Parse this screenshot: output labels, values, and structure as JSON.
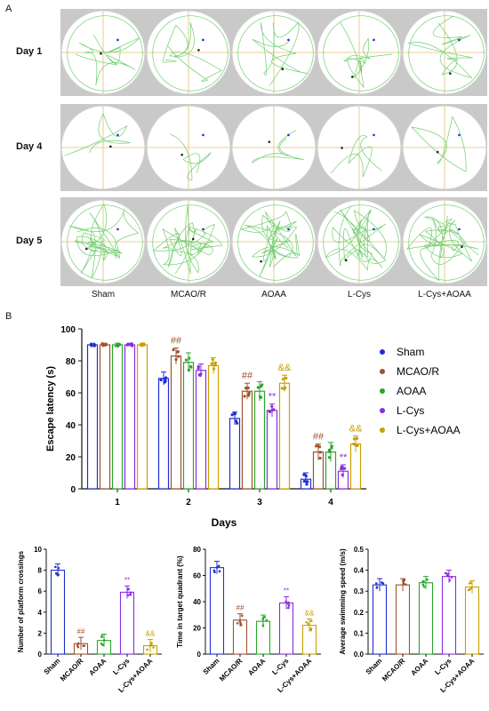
{
  "panel_a": {
    "label": "A",
    "days": [
      "Day 1",
      "Day 4",
      "Day 5"
    ],
    "groups": [
      "Sham",
      "MCAO/R",
      "AOAA",
      "L-Cys",
      "L-Cys+AOAA"
    ]
  },
  "panel_b": {
    "label": "B"
  },
  "colors": {
    "Sham": "#1f2fd0",
    "MCAO/R": "#a0522d",
    "AOAA": "#2aa52a",
    "L-Cys": "#8a2be2",
    "L-Cys+AOAA": "#c8a000"
  },
  "chart_data": [
    {
      "type": "bar",
      "ylabel": "Escape latency (s)",
      "xlabel": "Days",
      "categories": [
        "1",
        "2",
        "3",
        "4"
      ],
      "ylim": [
        0,
        100
      ],
      "yticks": [
        0,
        20,
        40,
        60,
        80,
        100
      ],
      "series": [
        {
          "name": "Sham",
          "values": [
            90,
            69,
            44,
            6
          ]
        },
        {
          "name": "MCAO/R",
          "values": [
            90,
            83,
            61,
            23
          ]
        },
        {
          "name": "AOAA",
          "values": [
            90,
            79,
            61,
            23
          ]
        },
        {
          "name": "L-Cys",
          "values": [
            90,
            74,
            49,
            11
          ]
        },
        {
          "name": "L-Cys+AOAA",
          "values": [
            90,
            77,
            66,
            28
          ]
        }
      ],
      "annotations": [
        {
          "category": "2",
          "series": "MCAO/R",
          "text": "##"
        },
        {
          "category": "3",
          "series": "MCAO/R",
          "text": "##"
        },
        {
          "category": "3",
          "series": "L-Cys",
          "text": "**"
        },
        {
          "category": "3",
          "series": "L-Cys+AOAA",
          "text": "&&"
        },
        {
          "category": "4",
          "series": "MCAO/R",
          "text": "##"
        },
        {
          "category": "4",
          "series": "L-Cys",
          "text": "**"
        },
        {
          "category": "4",
          "series": "L-Cys+AOAA",
          "text": "&&"
        }
      ],
      "legend": "right"
    },
    {
      "type": "bar",
      "ylabel": "Number of platform crossings",
      "categories": [
        "Sham",
        "MCAO/R",
        "AOAA",
        "L-Cys",
        "L-Cys+AOAA"
      ],
      "values": [
        8,
        1,
        1.3,
        5.9,
        0.8
      ],
      "ylim": [
        0,
        10
      ],
      "yticks": [
        0,
        2,
        4,
        6,
        8,
        10
      ],
      "annotations": [
        "",
        "##",
        "",
        "**",
        "&&"
      ]
    },
    {
      "type": "bar",
      "ylabel": "Time in target quadrant (%)",
      "categories": [
        "Sham",
        "MCAO/R",
        "AOAA",
        "L-Cys",
        "L-Cys+AOAA"
      ],
      "values": [
        66,
        26,
        25,
        39,
        22
      ],
      "ylim": [
        0,
        80
      ],
      "yticks": [
        0,
        20,
        40,
        60,
        80
      ],
      "annotations": [
        "",
        "##",
        "",
        "**",
        "&&"
      ]
    },
    {
      "type": "bar",
      "ylabel": "Average swimming speed (m/s)",
      "categories": [
        "Sham",
        "MCAO/R",
        "AOAA",
        "L-Cys",
        "L-Cys+AOAA"
      ],
      "values": [
        0.33,
        0.33,
        0.34,
        0.37,
        0.32
      ],
      "ylim": [
        0,
        0.5
      ],
      "yticks": [
        0.0,
        0.1,
        0.2,
        0.3,
        0.4,
        0.5
      ],
      "annotations": [
        "",
        "",
        "",
        "",
        ""
      ]
    }
  ]
}
